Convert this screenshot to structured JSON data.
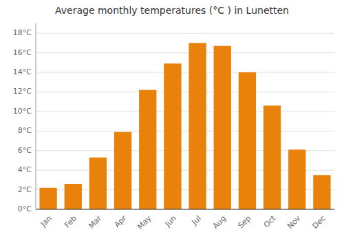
{
  "chart_data": {
    "type": "bar",
    "title": "Average monthly temperatures (°C ) in Lunetten",
    "categories": [
      "Jan",
      "Feb",
      "Mar",
      "Apr",
      "May",
      "Jun",
      "Jul",
      "Aug",
      "Sep",
      "Oct",
      "Nov",
      "Dec"
    ],
    "values": [
      2.2,
      2.6,
      5.3,
      7.9,
      12.2,
      14.9,
      17.0,
      16.7,
      14.0,
      10.6,
      6.1,
      3.5
    ],
    "color": "#E8820A",
    "ylim": [
      0,
      19
    ],
    "yticks": [
      {
        "value": 0,
        "label": "0°C"
      },
      {
        "value": 2,
        "label": "2°C"
      },
      {
        "value": 4,
        "label": "4°C"
      },
      {
        "value": 6,
        "label": "6°C"
      },
      {
        "value": 8,
        "label": "8°C"
      },
      {
        "value": 10,
        "label": "10°C"
      },
      {
        "value": 12,
        "label": "12°C"
      },
      {
        "value": 14,
        "label": "14°C"
      },
      {
        "value": 16,
        "label": "16°C"
      },
      {
        "value": 18,
        "label": "18°C"
      }
    ],
    "grid": true
  }
}
